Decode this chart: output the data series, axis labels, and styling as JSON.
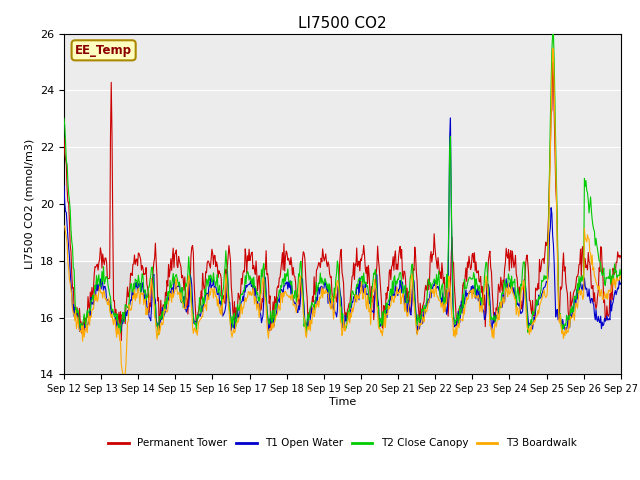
{
  "title": "LI7500 CO2",
  "ylabel": "LI7500 CO2 (mmol/m3)",
  "xlabel": "Time",
  "ylim": [
    14,
    26
  ],
  "annotation": "EE_Temp",
  "plot_bg_color": "#e0e0e0",
  "lighter_band_color": "#ececec",
  "colors": {
    "permanent_tower": "#cc0000",
    "t1_open_water": "#0000cc",
    "t2_close_canopy": "#00cc00",
    "t3_boardwalk": "#ffaa00"
  },
  "legend": [
    "Permanent Tower",
    "T1 Open Water",
    "T2 Close Canopy",
    "T3 Boardwalk"
  ],
  "xtick_labels": [
    "Sep 12",
    "Sep 13",
    "Sep 14",
    "Sep 15",
    "Sep 16",
    "Sep 17",
    "Sep 18",
    "Sep 19",
    "Sep 20",
    "Sep 21",
    "Sep 22",
    "Sep 23",
    "Sep 24",
    "Sep 25",
    "Sep 26",
    "Sep 27"
  ],
  "n_days": 15,
  "pts_per_day": 48
}
